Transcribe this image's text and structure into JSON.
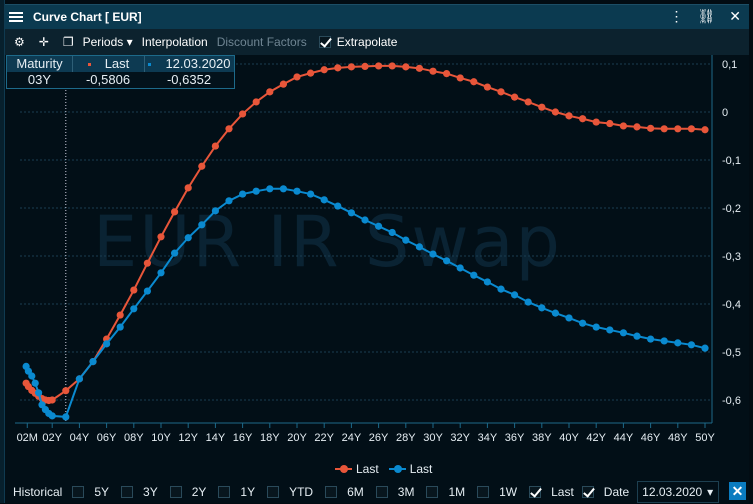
{
  "window": {
    "title": "Curve Chart [ EUR]"
  },
  "toolbar": {
    "periods": "Periods",
    "interpolation": "Interpolation",
    "discount_factors": "Discount Factors",
    "extrapolate": "Extrapolate",
    "extrapolate_checked": true
  },
  "crosshair_table": {
    "headers": [
      "Maturity",
      "Last",
      "12.03.2020"
    ],
    "row": [
      "03Y",
      "-0,5806",
      "-0,6352"
    ]
  },
  "watermark": "EUR IR Swap",
  "legend": [
    "Last",
    "Last"
  ],
  "historical": {
    "label": "Historical",
    "options": [
      {
        "label": "5Y",
        "checked": false
      },
      {
        "label": "3Y",
        "checked": false
      },
      {
        "label": "2Y",
        "checked": false
      },
      {
        "label": "1Y",
        "checked": false
      },
      {
        "label": "YTD",
        "checked": false
      },
      {
        "label": "6M",
        "checked": false
      },
      {
        "label": "3M",
        "checked": false
      },
      {
        "label": "1M",
        "checked": false
      },
      {
        "label": "1W",
        "checked": false
      },
      {
        "label": "Last",
        "checked": true
      },
      {
        "label": "Date",
        "checked": true
      }
    ],
    "date_value": "12.03.2020"
  },
  "colors": {
    "last": "#e8563a",
    "historical": "#0a8ad0",
    "accent": "#0a7cc0"
  },
  "chart_data": {
    "type": "line",
    "xlabel": "",
    "ylabel": "",
    "ylim": [
      -0.6,
      0.1
    ],
    "yticks": [
      0.1,
      0,
      -0.1,
      -0.2,
      -0.3,
      -0.4,
      -0.5,
      -0.6
    ],
    "ytick_labels": [
      "0,1",
      "0",
      "-0,1",
      "-0,2",
      "-0,3",
      "-0,4",
      "-0,5",
      "-0,6"
    ],
    "xticks": [
      0.167,
      2,
      4,
      6,
      8,
      10,
      12,
      14,
      16,
      18,
      20,
      22,
      24,
      26,
      28,
      30,
      32,
      34,
      36,
      38,
      40,
      42,
      44,
      46,
      48,
      50
    ],
    "xtick_labels": [
      "02M",
      "02Y",
      "04Y",
      "06Y",
      "08Y",
      "10Y",
      "12Y",
      "14Y",
      "16Y",
      "18Y",
      "20Y",
      "22Y",
      "24Y",
      "26Y",
      "28Y",
      "30Y",
      "32Y",
      "34Y",
      "36Y",
      "38Y",
      "40Y",
      "42Y",
      "44Y",
      "46Y",
      "48Y",
      "50Y"
    ],
    "grid": true,
    "legend_position": "bottom",
    "crosshair_x": 3,
    "x": [
      0.083,
      0.25,
      0.5,
      0.75,
      1,
      1.25,
      1.5,
      1.75,
      2,
      3,
      4,
      5,
      6,
      7,
      8,
      9,
      10,
      11,
      12,
      13,
      14,
      15,
      16,
      17,
      18,
      19,
      20,
      21,
      22,
      23,
      24,
      25,
      26,
      27,
      28,
      29,
      30,
      31,
      32,
      33,
      34,
      35,
      36,
      37,
      38,
      39,
      40,
      41,
      42,
      43,
      44,
      45,
      46,
      47,
      48,
      49,
      50
    ],
    "series": [
      {
        "name": "Last",
        "values": [
          -0.565,
          -0.572,
          -0.58,
          -0.586,
          -0.592,
          -0.597,
          -0.6,
          -0.601,
          -0.6,
          -0.5806,
          -0.556,
          -0.52,
          -0.473,
          -0.423,
          -0.371,
          -0.315,
          -0.26,
          -0.208,
          -0.158,
          -0.113,
          -0.071,
          -0.035,
          -0.004,
          0.021,
          0.042,
          0.058,
          0.073,
          0.081,
          0.088,
          0.092,
          0.094,
          0.095,
          0.096,
          0.096,
          0.094,
          0.091,
          0.085,
          0.08,
          0.071,
          0.063,
          0.052,
          0.042,
          0.031,
          0.021,
          0.01,
          0.0,
          -0.008,
          -0.014,
          -0.021,
          -0.024,
          -0.029,
          -0.031,
          -0.034,
          -0.035,
          -0.035,
          -0.035,
          -0.037
        ]
      },
      {
        "name": "Last",
        "values": [
          -0.53,
          -0.54,
          -0.55,
          -0.565,
          -0.585,
          -0.61,
          -0.62,
          -0.628,
          -0.633,
          -0.6352,
          -0.556,
          -0.52,
          -0.483,
          -0.448,
          -0.41,
          -0.373,
          -0.335,
          -0.294,
          -0.262,
          -0.235,
          -0.206,
          -0.185,
          -0.171,
          -0.165,
          -0.16,
          -0.16,
          -0.165,
          -0.171,
          -0.183,
          -0.196,
          -0.21,
          -0.225,
          -0.238,
          -0.251,
          -0.267,
          -0.281,
          -0.296,
          -0.31,
          -0.325,
          -0.34,
          -0.354,
          -0.369,
          -0.381,
          -0.396,
          -0.408,
          -0.419,
          -0.429,
          -0.44,
          -0.448,
          -0.454,
          -0.46,
          -0.467,
          -0.473,
          -0.477,
          -0.481,
          -0.485,
          -0.492
        ]
      }
    ]
  }
}
